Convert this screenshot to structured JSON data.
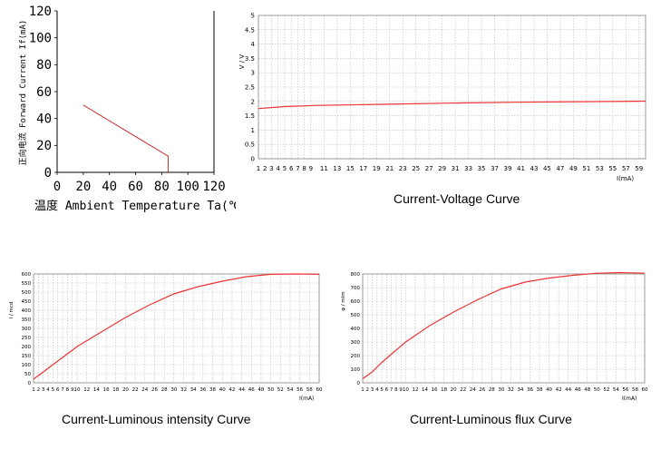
{
  "charts": {
    "derating": {
      "chart_data": {
        "type": "line",
        "xlabel": "温度 Ambient Temperature Ta(℃)",
        "ylabel": "正向电流 Forward Current If(mA)",
        "xticks": [
          "0",
          "20",
          "40",
          "60",
          "80",
          "100",
          "120"
        ],
        "yticks": [
          "0",
          "20",
          "40",
          "60",
          "80",
          "100",
          "120"
        ],
        "xlim": [
          0,
          120
        ],
        "ylim": [
          0,
          120
        ],
        "grid": false,
        "series": [
          {
            "x": [
              20,
              85,
              85
            ],
            "y": [
              50,
              12,
              0
            ]
          }
        ]
      }
    },
    "iv": {
      "caption": "Current-Voltage Curve",
      "chart_data": {
        "type": "line",
        "xlabel": "I(mA)",
        "ylabel": "V / V",
        "xlim": [
          1,
          60
        ],
        "ylim": [
          0,
          5
        ],
        "grid": true,
        "xticks": [
          "1",
          "2",
          "3",
          "4",
          "5",
          "6",
          "7",
          "8",
          "9",
          "11",
          "13",
          "15",
          "17",
          "19",
          "21",
          "23",
          "25",
          "27",
          "29",
          "31",
          "33",
          "35",
          "37",
          "39",
          "41",
          "43",
          "45",
          "47",
          "49",
          "51",
          "53",
          "55",
          "57",
          "59"
        ],
        "yticks": [
          "0",
          "0.5",
          "1",
          "1.5",
          "2",
          "2.5",
          "3",
          "3.5",
          "4",
          "4.5",
          "5"
        ],
        "series": [
          {
            "x": [
              1,
              5,
              10,
              20,
              30,
              40,
              50,
              60
            ],
            "y": [
              1.75,
              1.82,
              1.86,
              1.9,
              1.94,
              1.97,
              1.99,
              2.01
            ]
          }
        ]
      }
    },
    "luminous_intensity": {
      "caption": "Current-Luminous intensity Curve",
      "chart_data": {
        "type": "line",
        "xlabel": "I(mA)",
        "ylabel": "I / mcd",
        "xlim": [
          1,
          60
        ],
        "ylim": [
          0,
          600
        ],
        "grid": true,
        "xticks": [
          "1",
          "2",
          "3",
          "4",
          "5",
          "6",
          "7",
          "8",
          "9",
          "10",
          "12",
          "14",
          "16",
          "18",
          "20",
          "22",
          "24",
          "26",
          "28",
          "30",
          "32",
          "34",
          "36",
          "38",
          "40",
          "42",
          "44",
          "46",
          "48",
          "50",
          "52",
          "54",
          "56",
          "58",
          "60"
        ],
        "yticks": [
          "0",
          "50",
          "100",
          "150",
          "200",
          "250",
          "300",
          "350",
          "400",
          "450",
          "500",
          "550",
          "600"
        ],
        "series": [
          {
            "x": [
              1,
              3,
              5,
              10,
              15,
              20,
              25,
              30,
              35,
              40,
              45,
              50,
              55,
              60
            ],
            "y": [
              20,
              60,
              100,
              200,
              280,
              360,
              430,
              490,
              530,
              560,
              585,
              598,
              600,
              598
            ]
          }
        ]
      }
    },
    "luminous_flux": {
      "caption": "Current-Luminous flux Curve",
      "chart_data": {
        "type": "line",
        "xlabel": "I(mA)",
        "ylabel": "φ / mlm",
        "xlim": [
          1,
          60
        ],
        "ylim": [
          0,
          800
        ],
        "grid": true,
        "xticks": [
          "1",
          "2",
          "3",
          "4",
          "5",
          "6",
          "7",
          "8",
          "9",
          "10",
          "12",
          "14",
          "16",
          "18",
          "20",
          "22",
          "24",
          "26",
          "28",
          "30",
          "32",
          "34",
          "36",
          "38",
          "40",
          "42",
          "44",
          "46",
          "48",
          "50",
          "52",
          "54",
          "56",
          "58",
          "60"
        ],
        "yticks": [
          "0",
          "100",
          "200",
          "300",
          "400",
          "500",
          "600",
          "700",
          "800"
        ],
        "series": [
          {
            "x": [
              1,
              3,
              5,
              10,
              15,
              20,
              25,
              30,
              35,
              40,
              45,
              50,
              55,
              60
            ],
            "y": [
              30,
              80,
              150,
              300,
              420,
              520,
              610,
              690,
              740,
              770,
              790,
              805,
              810,
              805
            ]
          }
        ]
      }
    }
  }
}
